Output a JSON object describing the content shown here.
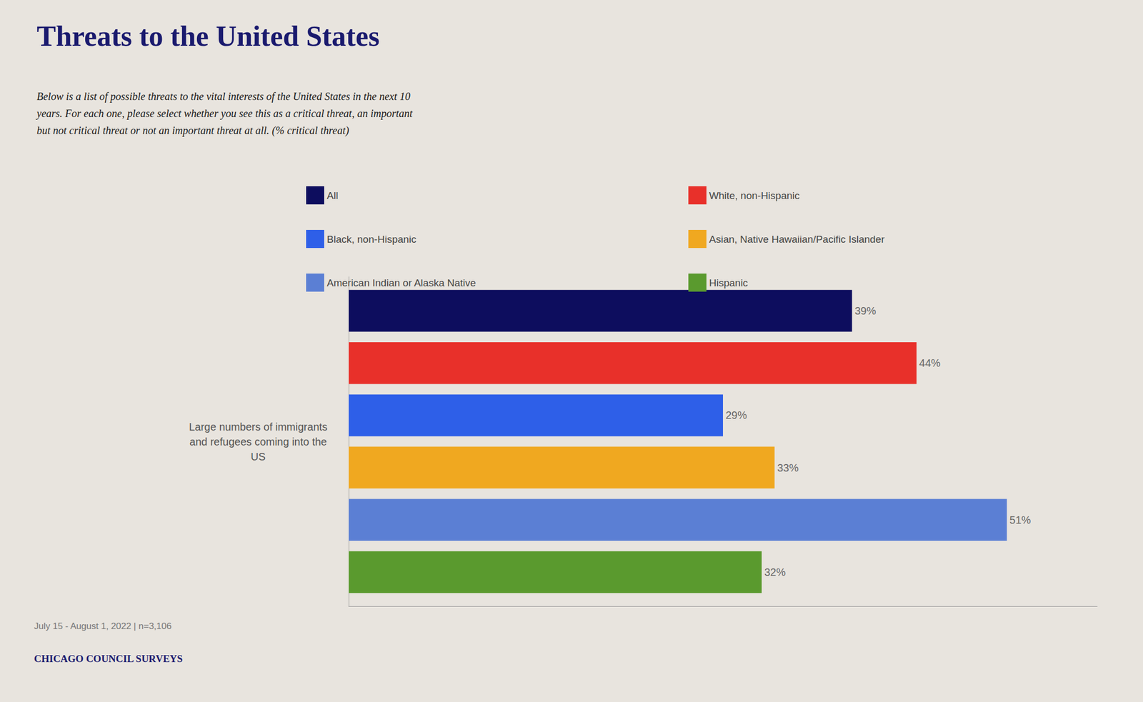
{
  "chart_data": {
    "type": "bar",
    "orientation": "horizontal",
    "title": "Threats to the United States",
    "subtitle": "Below is a list of possible threats to the vital interests of the United States in the next 10\nyears. For each one, please select whether you see this as a critical threat, an important\nbut not critical threat or not an important threat at all. (% critical threat)",
    "categories": [
      "Large numbers of immigrants\nand refugees coming into the\nUS"
    ],
    "series": [
      {
        "name": "All",
        "color": "#0d0d5e",
        "values": [
          39
        ],
        "value_labels": [
          "39%"
        ]
      },
      {
        "name": "White, non-Hispanic",
        "color": "#e8302a",
        "values": [
          44
        ],
        "value_labels": [
          "44%"
        ]
      },
      {
        "name": "Black, non-Hispanic",
        "color": "#2e5fe8",
        "values": [
          29
        ],
        "value_labels": [
          "29%"
        ]
      },
      {
        "name": "Asian, Native Hawaiian/Pacific Islander",
        "color": "#f0a820",
        "values": [
          33
        ],
        "value_labels": [
          "33%"
        ]
      },
      {
        "name": "American Indian or Alaska Native",
        "color": "#5b7fd4",
        "values": [
          51
        ],
        "value_labels": [
          "51%"
        ]
      },
      {
        "name": "Hispanic",
        "color": "#5a9a2e",
        "values": [
          32
        ],
        "value_labels": [
          "32%"
        ]
      }
    ],
    "xlim": [
      0,
      58
    ],
    "data_labels": true,
    "tick_labels": "y",
    "grid": false,
    "legend": "top",
    "annotations": [
      "July 15 - August 1, 2022 | n=3,106",
      "CHICAGO COUNCIL SURVEYS"
    ]
  }
}
